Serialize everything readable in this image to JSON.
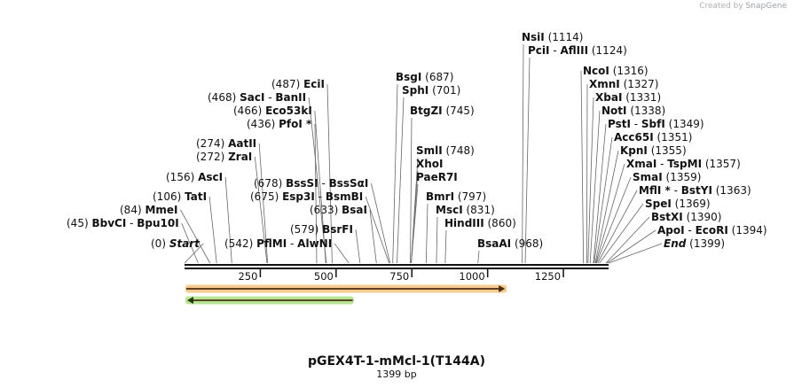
{
  "credit": {
    "prefix": "Created by",
    "brand": "SnapGene"
  },
  "map": {
    "title": "pGEX4T-1-mMcl-1(T144A)",
    "length_label": "1399 bp",
    "length": 1399,
    "ticks": [
      250,
      500,
      750,
      1000,
      1250
    ],
    "tick_labels": [
      "250",
      "500",
      "750",
      "1000",
      "1250"
    ],
    "feature_colors": {
      "orange": "#f0a030",
      "green": "#7ecf3c"
    },
    "features": [
      {
        "name": "orange-arrow",
        "start": 0,
        "end": 1060,
        "direction": "forward",
        "color": "#f0a030"
      },
      {
        "name": "green-arrow",
        "start": 0,
        "end": 555,
        "direction": "reverse",
        "color": "#7ecf3c"
      }
    ],
    "sites": [
      {
        "pos": "(0)",
        "parts": [
          "Start"
        ],
        "bp": 0
      },
      {
        "pos": "(45)",
        "parts": [
          "BbvCI",
          "Bpu10I"
        ],
        "bp": 45
      },
      {
        "pos": "(84)",
        "parts": [
          "MmeI"
        ],
        "bp": 84
      },
      {
        "pos": "(106)",
        "parts": [
          "TatI"
        ],
        "bp": 106
      },
      {
        "pos": "(156)",
        "parts": [
          "AscI"
        ],
        "bp": 156
      },
      {
        "pos": "(272)",
        "parts": [
          "ZraI"
        ],
        "bp": 272
      },
      {
        "pos": "(274)",
        "parts": [
          "AatII"
        ],
        "bp": 274
      },
      {
        "pos": "(436)",
        "parts": [
          "PfoI *"
        ],
        "bp": 436
      },
      {
        "pos": "(466)",
        "parts": [
          "Eco53kI"
        ],
        "bp": 466
      },
      {
        "pos": "(468)",
        "parts": [
          "SacI",
          "BanII"
        ],
        "bp": 468
      },
      {
        "pos": "(487)",
        "parts": [
          "EciI"
        ],
        "bp": 487
      },
      {
        "pos": "(542)",
        "parts": [
          "PflMI",
          "AlwNI"
        ],
        "bp": 542
      },
      {
        "pos": "(579)",
        "parts": [
          "BsrFI"
        ],
        "bp": 579
      },
      {
        "pos": "(633)",
        "parts": [
          "BsaI"
        ],
        "bp": 633
      },
      {
        "pos": "(675)",
        "parts": [
          "Esp3I",
          "BsmBI"
        ],
        "bp": 675
      },
      {
        "pos": "(678)",
        "parts": [
          "BssSI",
          "BssSαI"
        ],
        "bp": 678
      },
      {
        "pos": "(687)",
        "parts": [
          "BsgI"
        ],
        "bp": 687
      },
      {
        "pos": "(701)",
        "parts": [
          "SphI"
        ],
        "bp": 701
      },
      {
        "pos": "(745)",
        "parts": [
          "BtgZI"
        ],
        "bp": 745
      },
      {
        "pos": "(748)",
        "parts": [
          "SmlI"
        ],
        "bp": 748
      },
      {
        "pos": "",
        "parts": [
          "XhoI"
        ],
        "bp": 748
      },
      {
        "pos": "",
        "parts": [
          "PaeR7I"
        ],
        "bp": 748
      },
      {
        "pos": "(797)",
        "parts": [
          "BmrI"
        ],
        "bp": 797
      },
      {
        "pos": "(831)",
        "parts": [
          "MscI"
        ],
        "bp": 831
      },
      {
        "pos": "(860)",
        "parts": [
          "HindIII"
        ],
        "bp": 860
      },
      {
        "pos": "(968)",
        "parts": [
          "BsaAI"
        ],
        "bp": 968
      },
      {
        "pos": "(1114)",
        "parts": [
          "NsiI"
        ],
        "bp": 1114
      },
      {
        "pos": "(1124)",
        "parts": [
          "PciI",
          "AflIII"
        ],
        "bp": 1124
      },
      {
        "pos": "(1316)",
        "parts": [
          "NcoI"
        ],
        "bp": 1316
      },
      {
        "pos": "(1327)",
        "parts": [
          "XmnI"
        ],
        "bp": 1327
      },
      {
        "pos": "(1331)",
        "parts": [
          "XbaI"
        ],
        "bp": 1331
      },
      {
        "pos": "(1338)",
        "parts": [
          "NotI"
        ],
        "bp": 1338
      },
      {
        "pos": "(1349)",
        "parts": [
          "PstI",
          "SbfI"
        ],
        "bp": 1349
      },
      {
        "pos": "(1351)",
        "parts": [
          "Acc65I"
        ],
        "bp": 1351
      },
      {
        "pos": "(1355)",
        "parts": [
          "KpnI"
        ],
        "bp": 1355
      },
      {
        "pos": "(1357)",
        "parts": [
          "XmaI",
          "TspMI"
        ],
        "bp": 1357
      },
      {
        "pos": "(1359)",
        "parts": [
          "SmaI"
        ],
        "bp": 1359
      },
      {
        "pos": "(1363)",
        "parts": [
          "MflI *",
          "BstYI"
        ],
        "bp": 1363
      },
      {
        "pos": "(1369)",
        "parts": [
          "SpeI"
        ],
        "bp": 1369
      },
      {
        "pos": "(1390)",
        "parts": [
          "BstXI"
        ],
        "bp": 1390
      },
      {
        "pos": "(1394)",
        "parts": [
          "ApoI",
          "EcoRI"
        ],
        "bp": 1394
      },
      {
        "pos": "(1399)",
        "parts": [
          "End"
        ],
        "bp": 1399
      }
    ]
  }
}
